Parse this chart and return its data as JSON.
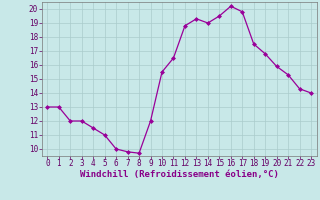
{
  "x": [
    0,
    1,
    2,
    3,
    4,
    5,
    6,
    7,
    8,
    9,
    10,
    11,
    12,
    13,
    14,
    15,
    16,
    17,
    18,
    19,
    20,
    21,
    22,
    23
  ],
  "y": [
    13,
    13,
    12,
    12,
    11.5,
    11,
    10,
    9.8,
    9.7,
    12,
    15.5,
    16.5,
    18.8,
    19.3,
    19,
    19.5,
    20.2,
    19.8,
    17.5,
    16.8,
    15.9,
    15.3,
    14.3,
    14
  ],
  "line_color": "#990099",
  "marker": "D",
  "marker_size": 2,
  "bg_color": "#c8e8e8",
  "grid_color": "#aacccc",
  "xlabel": "Windchill (Refroidissement éolien,°C)",
  "ylim": [
    9.5,
    20.5
  ],
  "xlim": [
    -0.5,
    23.5
  ],
  "yticks": [
    10,
    11,
    12,
    13,
    14,
    15,
    16,
    17,
    18,
    19,
    20
  ],
  "xticks": [
    0,
    1,
    2,
    3,
    4,
    5,
    6,
    7,
    8,
    9,
    10,
    11,
    12,
    13,
    14,
    15,
    16,
    17,
    18,
    19,
    20,
    21,
    22,
    23
  ],
  "tick_fontsize": 5.5,
  "xlabel_fontsize": 6.5,
  "line_width": 0.9
}
